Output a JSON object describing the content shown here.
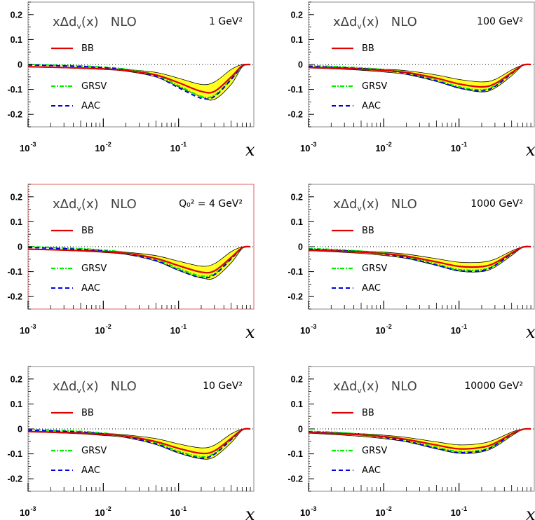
{
  "colors": {
    "band_fill": "#ffff20",
    "bb": "#e00000",
    "grsv": "#00ee00",
    "aac": "#0000dd",
    "frame": "#888888",
    "highlight_frame": "#e06060"
  },
  "chart_data": [
    {
      "type": "line",
      "title": "xΔd_v(x)  NLO",
      "annotation": "1 GeV²",
      "xlabel": "x",
      "xscale": "log",
      "xlim": [
        0.001,
        1
      ],
      "ylim": [
        -0.25,
        0.25
      ],
      "x_tick_labels": [
        "10⁻³",
        "10⁻²",
        "10⁻¹"
      ],
      "y_tick_labels": [
        "0.2",
        "0.1",
        "0",
        "-0.1",
        "-0.2"
      ],
      "grid": false,
      "legend": "inside, left",
      "x": [
        0.001,
        0.002,
        0.005,
        0.01,
        0.02,
        0.05,
        0.1,
        0.2,
        0.3,
        0.5,
        0.7,
        0.9
      ],
      "band": {
        "name": "BB uncertainty",
        "lower": [
          -0.01,
          -0.012,
          -0.016,
          -0.02,
          -0.027,
          -0.05,
          -0.09,
          -0.13,
          -0.14,
          -0.08,
          -0.01,
          0.0
        ],
        "upper": [
          -0.008,
          -0.01,
          -0.013,
          -0.016,
          -0.02,
          -0.032,
          -0.055,
          -0.08,
          -0.07,
          -0.02,
          0.0,
          0.0
        ]
      },
      "series": [
        {
          "name": "BB",
          "values": [
            -0.009,
            -0.011,
            -0.014,
            -0.018,
            -0.024,
            -0.042,
            -0.073,
            -0.108,
            -0.108,
            -0.05,
            -0.005,
            0.0
          ]
        },
        {
          "name": "GRSV",
          "values": [
            0.0,
            -0.002,
            -0.006,
            -0.011,
            -0.019,
            -0.042,
            -0.085,
            -0.128,
            -0.124,
            -0.058,
            -0.007,
            0.0
          ]
        },
        {
          "name": "AAC",
          "values": [
            -0.002,
            -0.004,
            -0.008,
            -0.013,
            -0.022,
            -0.048,
            -0.093,
            -0.135,
            -0.128,
            -0.06,
            -0.007,
            0.0
          ]
        }
      ]
    },
    {
      "type": "line",
      "title": "xΔd_v(x)  NLO",
      "annotation": "100 GeV²",
      "xlabel": "x",
      "xscale": "log",
      "xlim": [
        0.001,
        1
      ],
      "ylim": [
        -0.25,
        0.25
      ],
      "x_tick_labels": [
        "10⁻³",
        "10⁻²",
        "10⁻¹"
      ],
      "y_tick_labels": [
        "0.2",
        "0.1",
        "0",
        "-0.1",
        "-0.2"
      ],
      "grid": false,
      "legend": "inside, left",
      "x": [
        0.001,
        0.002,
        0.005,
        0.01,
        0.02,
        0.05,
        0.1,
        0.2,
        0.3,
        0.5,
        0.7,
        0.9
      ],
      "band": {
        "name": "BB uncertainty",
        "lower": [
          -0.014,
          -0.017,
          -0.023,
          -0.03,
          -0.04,
          -0.068,
          -0.095,
          -0.11,
          -0.095,
          -0.045,
          -0.005,
          0.0
        ],
        "upper": [
          -0.01,
          -0.012,
          -0.015,
          -0.019,
          -0.025,
          -0.042,
          -0.06,
          -0.07,
          -0.06,
          -0.022,
          -0.002,
          0.0
        ]
      },
      "series": [
        {
          "name": "BB",
          "values": [
            -0.012,
            -0.014,
            -0.019,
            -0.024,
            -0.032,
            -0.055,
            -0.078,
            -0.09,
            -0.077,
            -0.033,
            -0.003,
            0.0
          ]
        },
        {
          "name": "GRSV",
          "values": [
            -0.005,
            -0.008,
            -0.014,
            -0.021,
            -0.033,
            -0.062,
            -0.09,
            -0.102,
            -0.085,
            -0.035,
            -0.003,
            0.0
          ]
        },
        {
          "name": "AAC",
          "values": [
            -0.008,
            -0.011,
            -0.017,
            -0.024,
            -0.036,
            -0.066,
            -0.094,
            -0.106,
            -0.088,
            -0.036,
            -0.003,
            0.0
          ]
        }
      ]
    },
    {
      "type": "line",
      "title": "xΔd_v(x)  NLO",
      "annotation": "Q₀² = 4 GeV²",
      "xlabel": "x",
      "xscale": "log",
      "xlim": [
        0.001,
        1
      ],
      "ylim": [
        -0.25,
        0.25
      ],
      "x_tick_labels": [
        "10⁻³",
        "10⁻²",
        "10⁻¹"
      ],
      "y_tick_labels": [
        "0.2",
        "0.1",
        "0",
        "-0.1",
        "-0.2"
      ],
      "grid": false,
      "legend": "inside, left",
      "x": [
        0.001,
        0.002,
        0.005,
        0.01,
        0.02,
        0.05,
        0.1,
        0.2,
        0.3,
        0.5,
        0.7,
        0.9
      ],
      "band": {
        "name": "BB uncertainty",
        "lower": [
          -0.011,
          -0.013,
          -0.018,
          -0.023,
          -0.031,
          -0.058,
          -0.095,
          -0.125,
          -0.125,
          -0.065,
          -0.008,
          0.0
        ],
        "upper": [
          -0.009,
          -0.011,
          -0.014,
          -0.017,
          -0.022,
          -0.036,
          -0.058,
          -0.078,
          -0.068,
          -0.02,
          -0.001,
          0.0
        ]
      },
      "series": [
        {
          "name": "BB",
          "values": [
            -0.01,
            -0.012,
            -0.016,
            -0.02,
            -0.026,
            -0.047,
            -0.076,
            -0.102,
            -0.097,
            -0.043,
            -0.004,
            0.0
          ]
        },
        {
          "name": "GRSV",
          "values": [
            0.0,
            -0.003,
            -0.008,
            -0.014,
            -0.024,
            -0.051,
            -0.088,
            -0.118,
            -0.108,
            -0.048,
            -0.005,
            0.0
          ]
        },
        {
          "name": "AAC",
          "values": [
            -0.003,
            -0.006,
            -0.011,
            -0.017,
            -0.028,
            -0.056,
            -0.094,
            -0.124,
            -0.112,
            -0.049,
            -0.005,
            0.0
          ]
        }
      ]
    },
    {
      "type": "line",
      "title": "xΔd_v(x)  NLO",
      "annotation": "1000 GeV²",
      "xlabel": "x",
      "xscale": "log",
      "xlim": [
        0.001,
        1
      ],
      "ylim": [
        -0.25,
        0.25
      ],
      "x_tick_labels": [
        "10⁻³",
        "10⁻²",
        "10⁻¹"
      ],
      "y_tick_labels": [
        "0.2",
        "0.1",
        "0",
        "-0.1",
        "-0.2"
      ],
      "grid": false,
      "legend": "inside, left",
      "x": [
        0.001,
        0.002,
        0.005,
        0.01,
        0.02,
        0.05,
        0.1,
        0.2,
        0.3,
        0.5,
        0.7,
        0.9
      ],
      "band": {
        "name": "BB uncertainty",
        "lower": [
          -0.016,
          -0.02,
          -0.027,
          -0.035,
          -0.047,
          -0.075,
          -0.098,
          -0.1,
          -0.082,
          -0.035,
          -0.003,
          0.0
        ],
        "upper": [
          -0.011,
          -0.013,
          -0.017,
          -0.022,
          -0.03,
          -0.048,
          -0.062,
          -0.062,
          -0.05,
          -0.017,
          -0.001,
          0.0
        ]
      },
      "series": [
        {
          "name": "BB",
          "values": [
            -0.014,
            -0.017,
            -0.022,
            -0.028,
            -0.038,
            -0.061,
            -0.079,
            -0.08,
            -0.065,
            -0.025,
            -0.002,
            0.0
          ]
        },
        {
          "name": "GRSV",
          "values": [
            -0.008,
            -0.011,
            -0.018,
            -0.026,
            -0.04,
            -0.07,
            -0.092,
            -0.093,
            -0.073,
            -0.027,
            -0.002,
            0.0
          ]
        },
        {
          "name": "AAC",
          "values": [
            -0.01,
            -0.014,
            -0.021,
            -0.03,
            -0.044,
            -0.074,
            -0.096,
            -0.096,
            -0.075,
            -0.028,
            -0.002,
            0.0
          ]
        }
      ]
    },
    {
      "type": "line",
      "title": "xΔd_v(x)  NLO",
      "annotation": "10 GeV²",
      "xlabel": "x",
      "xscale": "log",
      "xlim": [
        0.001,
        1
      ],
      "ylim": [
        -0.25,
        0.25
      ],
      "x_tick_labels": [
        "10⁻³",
        "10⁻²",
        "10⁻¹"
      ],
      "y_tick_labels": [
        "0.2",
        "0.1",
        "0",
        "-0.1",
        "-0.2"
      ],
      "grid": false,
      "legend": "inside, left",
      "x": [
        0.001,
        0.002,
        0.005,
        0.01,
        0.02,
        0.05,
        0.1,
        0.2,
        0.3,
        0.5,
        0.7,
        0.9
      ],
      "band": {
        "name": "BB uncertainty",
        "lower": [
          -0.012,
          -0.015,
          -0.02,
          -0.026,
          -0.035,
          -0.063,
          -0.097,
          -0.12,
          -0.112,
          -0.055,
          -0.006,
          0.0
        ],
        "upper": [
          -0.009,
          -0.011,
          -0.014,
          -0.018,
          -0.024,
          -0.039,
          -0.06,
          -0.076,
          -0.065,
          -0.02,
          -0.001,
          0.0
        ]
      },
      "series": [
        {
          "name": "BB",
          "values": [
            -0.011,
            -0.013,
            -0.017,
            -0.022,
            -0.029,
            -0.051,
            -0.078,
            -0.098,
            -0.088,
            -0.038,
            -0.003,
            0.0
          ]
        },
        {
          "name": "GRSV",
          "values": [
            -0.002,
            -0.005,
            -0.01,
            -0.017,
            -0.028,
            -0.056,
            -0.09,
            -0.112,
            -0.098,
            -0.042,
            -0.004,
            0.0
          ]
        },
        {
          "name": "AAC",
          "values": [
            -0.005,
            -0.008,
            -0.013,
            -0.02,
            -0.031,
            -0.06,
            -0.095,
            -0.117,
            -0.101,
            -0.043,
            -0.004,
            0.0
          ]
        }
      ]
    },
    {
      "type": "line",
      "title": "xΔd_v(x)  NLO",
      "annotation": "10000 GeV²",
      "xlabel": "x",
      "xscale": "log",
      "xlim": [
        0.001,
        1
      ],
      "ylim": [
        -0.25,
        0.25
      ],
      "x_tick_labels": [
        "10⁻³",
        "10⁻²",
        "10⁻¹"
      ],
      "y_tick_labels": [
        "0.2",
        "0.1",
        "0",
        "-0.1",
        "-0.2"
      ],
      "grid": false,
      "legend": "inside, left",
      "x": [
        0.001,
        0.002,
        0.005,
        0.01,
        0.02,
        0.05,
        0.1,
        0.2,
        0.3,
        0.5,
        0.7,
        0.9
      ],
      "band": {
        "name": "BB uncertainty",
        "lower": [
          -0.017,
          -0.022,
          -0.03,
          -0.039,
          -0.052,
          -0.08,
          -0.098,
          -0.092,
          -0.072,
          -0.028,
          -0.002,
          0.0
        ],
        "upper": [
          -0.012,
          -0.014,
          -0.019,
          -0.025,
          -0.034,
          -0.052,
          -0.064,
          -0.058,
          -0.043,
          -0.013,
          -0.001,
          0.0
        ]
      },
      "series": [
        {
          "name": "BB",
          "values": [
            -0.015,
            -0.018,
            -0.024,
            -0.031,
            -0.042,
            -0.065,
            -0.08,
            -0.074,
            -0.057,
            -0.02,
            -0.002,
            0.0
          ]
        },
        {
          "name": "GRSV",
          "values": [
            -0.01,
            -0.013,
            -0.021,
            -0.03,
            -0.045,
            -0.074,
            -0.091,
            -0.085,
            -0.064,
            -0.021,
            -0.002,
            0.0
          ]
        },
        {
          "name": "AAC",
          "values": [
            -0.012,
            -0.016,
            -0.024,
            -0.034,
            -0.049,
            -0.078,
            -0.095,
            -0.088,
            -0.066,
            -0.022,
            -0.002,
            0.0
          ]
        }
      ]
    }
  ]
}
